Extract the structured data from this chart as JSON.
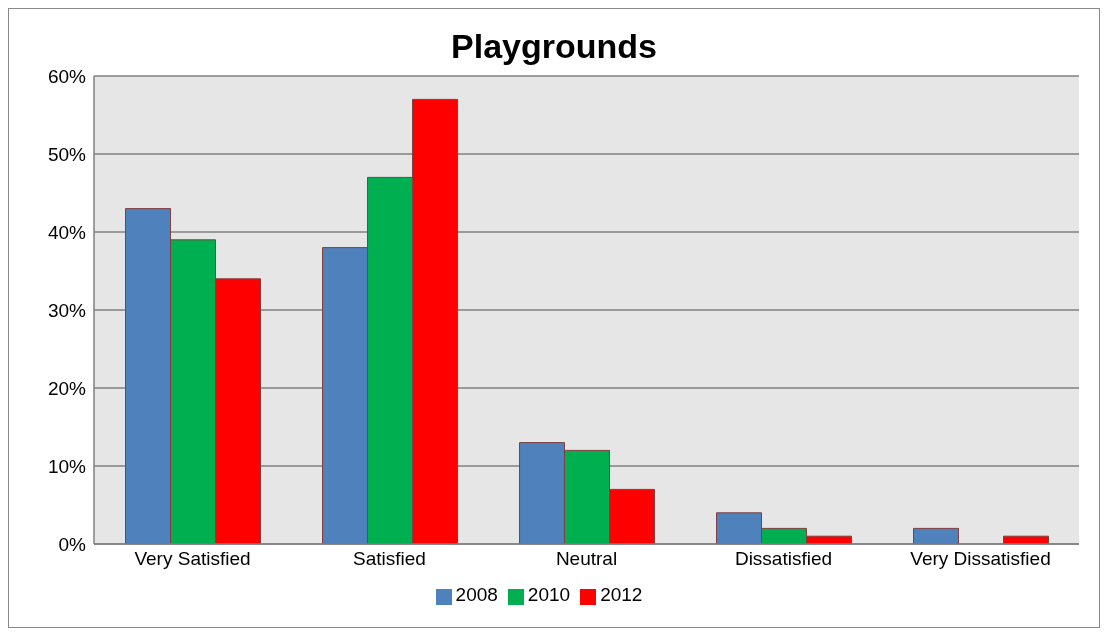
{
  "chart_data": {
    "type": "bar",
    "title": "Playgrounds",
    "categories": [
      "Very Satisfied",
      "Satisfied",
      "Neutral",
      "Dissatisfied",
      "Very Dissatisfied"
    ],
    "series": [
      {
        "name": "2008",
        "color": "#4f81bd",
        "values": [
          43,
          38,
          13,
          4,
          2
        ]
      },
      {
        "name": "2010",
        "color": "#00b050",
        "values": [
          39,
          47,
          12,
          2,
          0
        ]
      },
      {
        "name": "2012",
        "color": "#ff0000",
        "values": [
          34,
          57,
          7,
          1,
          1
        ]
      }
    ],
    "ylim": [
      0,
      60
    ],
    "yticks": [
      {
        "value": 0,
        "label": "0%"
      },
      {
        "value": 10,
        "label": "10%"
      },
      {
        "value": 20,
        "label": "20%"
      },
      {
        "value": 30,
        "label": "30%"
      },
      {
        "value": 40,
        "label": "40%"
      },
      {
        "value": 50,
        "label": "50%"
      },
      {
        "value": 60,
        "label": "60%"
      }
    ],
    "grid": "y",
    "legend": "bottom"
  }
}
